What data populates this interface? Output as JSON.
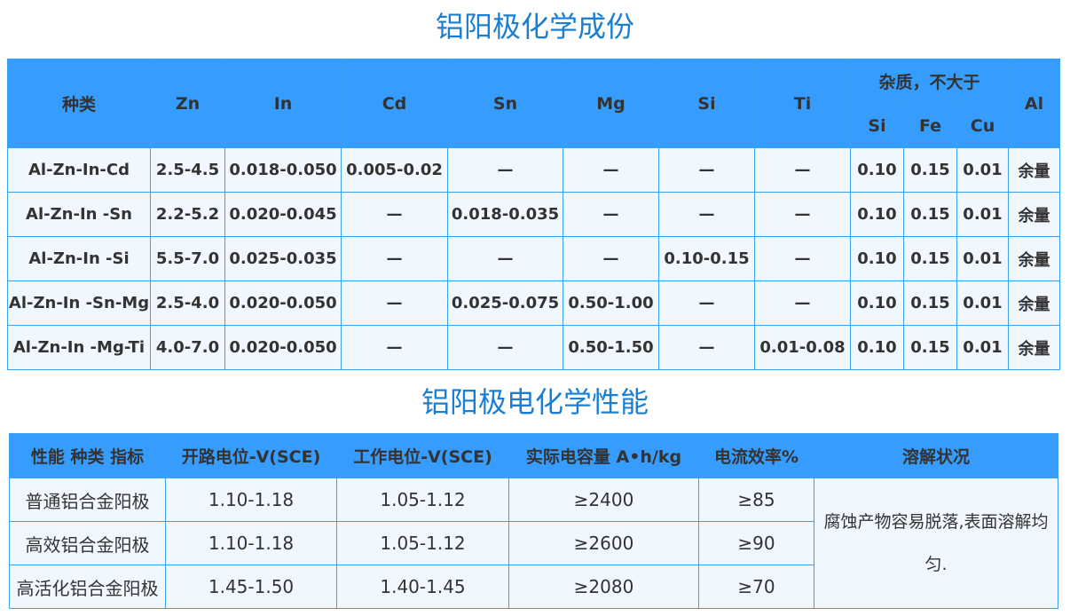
{
  "composition": {
    "title": "铝阳极化学成份",
    "headers": [
      "种类",
      "Zn",
      "In",
      "Cd",
      "Sn",
      "Mg",
      "Si",
      "Ti"
    ],
    "impurity_header": "杂质，不大于",
    "impurity_columns": [
      "Si",
      "Fe",
      "Cu"
    ],
    "al_header": "Al",
    "rows": [
      [
        "Al-Zn-In-Cd",
        "2.5-4.5",
        "0.018-0.050",
        "0.005-0.02",
        "—",
        "—",
        "—",
        "—",
        "0.10",
        "0.15",
        "0.01",
        "余量"
      ],
      [
        "Al-Zn-In  -Sn",
        "2.2-5.2",
        "0.020-0.045",
        "—",
        "0.018-0.035",
        "—",
        "—",
        "—",
        "0.10",
        "0.15",
        "0.01",
        "余量"
      ],
      [
        "Al-Zn-In  -Si",
        "5.5-7.0",
        "0.025-0.035",
        "—",
        "—",
        "—",
        "0.10-0.15",
        "—",
        "0.10",
        "0.15",
        "0.01",
        "余量"
      ],
      [
        "Al-Zn-In  -Sn-Mg",
        "2.5-4.0",
        "0.020-0.050",
        "—",
        "0.025-0.075",
        "0.50-1.00",
        "—",
        "—",
        "0.10",
        "0.15",
        "0.01",
        "余量"
      ],
      [
        "Al-Zn-In  -Mg-Ti",
        "4.0-7.0",
        "0.020-0.050",
        "—",
        "—",
        "0.50-1.50",
        "—",
        "0.01-0.08",
        "0.10",
        "0.15",
        "0.01",
        "余量"
      ]
    ]
  },
  "performance": {
    "title": "铝阳极电化学性能",
    "headers": [
      "性能 种类 指标",
      "开路电位-V(SCE)",
      "工作电位-V(SCE)",
      "实际电容量 A•h/kg",
      "电流效率%",
      "溶解状况"
    ],
    "rows": [
      [
        "普通铝合金阳极",
        "1.10-1.18",
        "1.05-1.12",
        "≥2400",
        "≥85"
      ],
      [
        "高效铝合金阳极",
        "1.10-1.18",
        "1.05-1.12",
        "≥2600",
        "≥90"
      ],
      [
        "高活化铝合金阳极",
        "1.45-1.50",
        "1.40-1.45",
        "≥2080",
        "≥70"
      ]
    ],
    "dissolution_note": "腐蚀产物容易脱落,表面溶解均匀."
  },
  "colors": {
    "header_bg": "#369dff",
    "row_bg": "#f1f7ff",
    "title": "#1a7fd3",
    "border": "#3aa0f0"
  }
}
